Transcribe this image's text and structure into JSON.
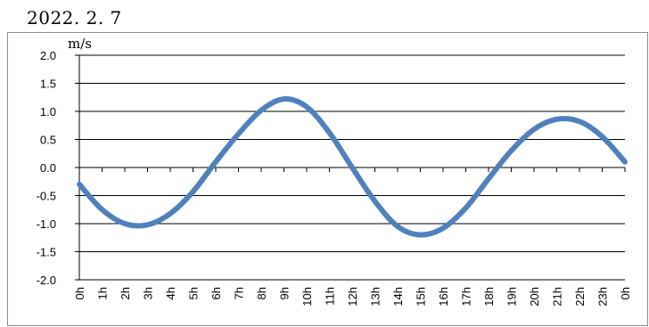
{
  "header": {
    "date": "2022. 2. 7"
  },
  "chart_data": {
    "type": "line",
    "title": "",
    "xlabel": "",
    "ylabel": "m/s",
    "ylim": [
      -2.0,
      2.0
    ],
    "yticks": [
      "2.0",
      "1.5",
      "1.0",
      "0.5",
      "0.0",
      "-0.5",
      "-1.0",
      "-1.5",
      "-2.0"
    ],
    "ytick_values": [
      2.0,
      1.5,
      1.0,
      0.5,
      0.0,
      -0.5,
      -1.0,
      -1.5,
      -2.0
    ],
    "x": [
      0,
      1,
      2,
      3,
      4,
      5,
      6,
      7,
      8,
      9,
      10,
      11,
      12,
      13,
      14,
      15,
      16,
      17,
      18,
      19,
      20,
      21,
      22,
      23,
      24
    ],
    "xticks": [
      "0h",
      "1h",
      "2h",
      "3h",
      "4h",
      "5h",
      "6h",
      "7h",
      "8h",
      "9h",
      "10h",
      "11h",
      "12h",
      "13h",
      "14h",
      "15h",
      "16h",
      "17h",
      "18h",
      "19h",
      "20h",
      "21h",
      "22h",
      "23h",
      "0h"
    ],
    "grid": true,
    "legend": "none",
    "series": [
      {
        "color": "#4f81bd",
        "values": [
          -0.3,
          -0.75,
          -1.0,
          -1.02,
          -0.82,
          -0.43,
          0.1,
          0.6,
          1.02,
          1.22,
          1.08,
          0.62,
          0.0,
          -0.6,
          -1.05,
          -1.2,
          -1.08,
          -0.72,
          -0.2,
          0.3,
          0.68,
          0.86,
          0.82,
          0.55,
          0.1
        ]
      }
    ]
  }
}
